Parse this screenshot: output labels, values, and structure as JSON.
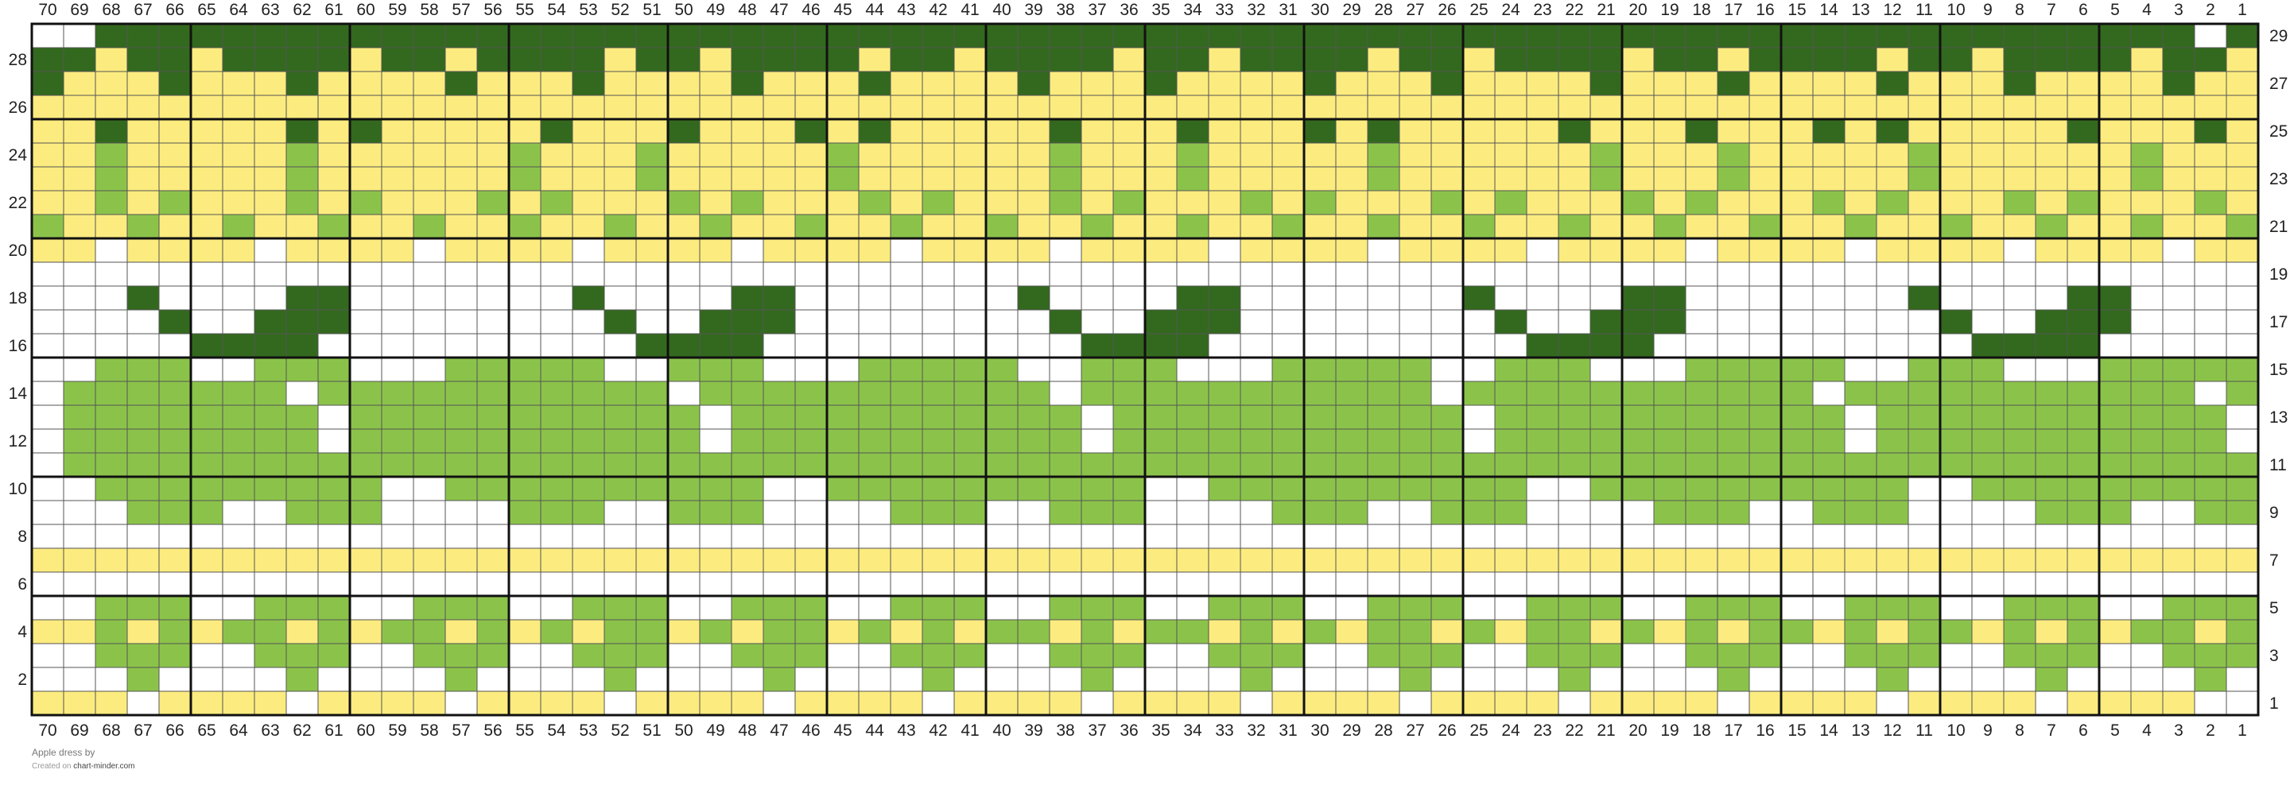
{
  "chart": {
    "columns": 70,
    "rows": 29,
    "column_numbers_order": "70 to 1, left to right",
    "row_numbers": "1 at bottom to 29 at top; odd rows labelled on the right, even rows on the left",
    "bold_grid_every": 5,
    "colors": {
      "W": "#ffffff",
      "Y": "#fcec7f",
      "L": "#8bc34a",
      "D": "#33691e"
    },
    "color_names": {
      "W": "white",
      "Y": "yellow",
      "L": "light-green",
      "D": "dark-green"
    },
    "row_patterns": {
      "29": "WWDDDDDDDDDDDDDDDDDDDDDDDDDDDDDDDDDDDDDDDDDDDDDDDDDDDDDDDDDDDDDDDDDDWD",
      "28": "DDYDDYDDDDYDDYDDDDYDDYDDDDYDDYDDDDYDDYDDDDYDDYDDDDYDDYDDDDYDDYDDDDYDDY",
      "27": "DYYYDYYYDYYYYDYYYDYYYYDYYYDYYYYDYYYDYYYYDYYYDYYYYDYYYDYYYYDYYYDYYYYDYY",
      "26": "YYYYYYYYYYYYYYYYYYYYYYYYYYYYYYYYYYYYYYYYYYYYYYYYYYYYYYYYYYYYYYYYYYYYYY",
      "25": "YYDYYYYYDYDYYYYYDYYYDYYYDYDYYYYYDYYYDYYYDYDYYYYYDYYYDYYYDYDYYYYYDYYYDY",
      "24": "YYLYYYYYLYYYYYYLYYYLYYYYYLYYYYYYLYYYLYYYYYLYYYYYYLYYYLYYYYYLYYYYYYLYYY",
      "23": "YYLYYYYYLYYYYYYLYYYLYYYYYLYYYYYYLYYYLYYYYYLYYYYYYLYYYLYYYYYLYYYYYYLYYY",
      "22": "YYLYLYYYLYLYYYLYLYYYLYLYYYLYLYYYLYLYYYLYLYYYLYLYYYLYLYYYLYLYYYLYLYYYLY",
      "21": "LYYLYYLYYLYYLYYLYYLYYLYYLYYLYYLYYLYYLYYLYYLYYLYYLYYLYYLYYLYYLYYLYYLYYL",
      "20": "YYWYYYYWYYYYWYYYYWYYYYWYYYYWYYYYWYYYYWYYYYWYYYYWYYYYWYYYYWYYYYWYYYYWYY",
      "19": "WWWWWWWWWWWWWWWWWWWWWWWWWWWWWWWWWWWWWWWWWWWWWWWWWWWWWWWWWWWWWWWWWWWWWW",
      "18": "WWWDWWWWDDWWWWWWWDWWWWDDWWWWWWWDWWWWDDWWWWWWWDWWWWDDWWWWWWWDWWWWDDWWWW",
      "17": "WWWWDWWDDDWWWWWWWWDWWDDDWWWWWWWWDWWDDDWWWWWWWWDWWDDDWWWWWWWWDWWDDDWWWW",
      "16": "WWWWWDDDDWWWWWWWWWWDDDDWWWWWWWWWWDDDDWWWWWWWWWWDDDDWWWWWWWWWWDDDDWWWWW",
      "15": "WWLLLWWLLLWWWLLLLLWWLLLWWWLLLLLWWLLLWWWLLLLLWWLLLWWWLLLLLWWLLLWWWLLLLL",
      "14": "WLLLLLLLWLLLLLLLLLLLWLLLLLLLLLLLWLLLLLLLLLLLWLLLLLLLLLLLWLLLLLLLLLLLWL",
      "13": "WLLLLLLLLWLLLLLLLLLLLWLLLLLLLLLLLWLLLLLLLLLLLWLLLLLLLLLLLWLLLLLLLLLLLW",
      "12": "WLLLLLLLLWLLLLLLLLLLLWLLLLLLLLLLLWLLLLLLLLLLLWLLLLLLLLLLLWLLLLLLLLLLLW",
      "11": "WLLLLLLLLLLLLLLLLLLLLLLLLLLLLLLLLLLLLLLLLLLLLLLLLLLLLLLLLLLLLLLLLLLLLL",
      "10": "WWLLLLLLLLLWWLLLLLLLLLLWWLLLLLLLLLLWWLLLLLLLLLLWWLLLLLLLLLLWWLLLLLLLLL",
      "9": "WWWLLLWWLLLWWWWLLLWWLLLWWWWLLLWWLLLWWWWLLLWWLLLWWWWLLLWWLLLWWWWLLLWWLL",
      "8": "WWWWWWWWWWWWWWWWWWWWWWWWWWWWWWWWWWWWWWWWWWWWWWWWWWWWWWWWWWWWWWWWWWWWWW",
      "7": "YYYYYYYYYYYYYYYYYYYYYYYYYYYYYYYYYYYYYYYYYYYYYYYYYYYYYYYYYYYYYYYYYYYYYY",
      "6": "WWWWWWWWWWWWWWWWWWWWWWWWWWWWWWWWWWWWWWWWWWWWWWWWWWWWWWWWWWWWWWWWWWWWWW",
      "5": "WWLLLWWLLLWWLLLWWLLLWWLLLWWLLLWWLLLWWLLLWWLLLWWLLLWWLLLWWLLLWWLLLWWLLL",
      "4": "YYLYLYLLYLYLLYLYLYLLYLYLLYLYLYLLYLYLLYLYLYLLYLYLLYLYLYLLYLYLLYLYLYLLYL",
      "3": "WWLLLWWLLLWWLLLWWLLLWWLLLWWLLLWWLLLWWLLLWWLLLWWLLLWWLLLWWLLLWWLLLWWLLL",
      "2": "WWWLWWWWLWWWWLWWWWLWWWWLWWWWLWWWWLWWWWLWWWWLWWWWLWWWWLWWWWLWWWWLWWWWL",
      "1": "YYYWYYYYWYYYYWYYYYWYYYYWYYYYWYYYYWYYYYWYYYYWYYYYWYYYYWYYYYWYYYYWYYYYW"
    }
  },
  "footer": {
    "line1": "Apple dress",
    "line1_by": "by",
    "line2_prefix": "Created on",
    "line2_site": "chart-minder.com"
  }
}
